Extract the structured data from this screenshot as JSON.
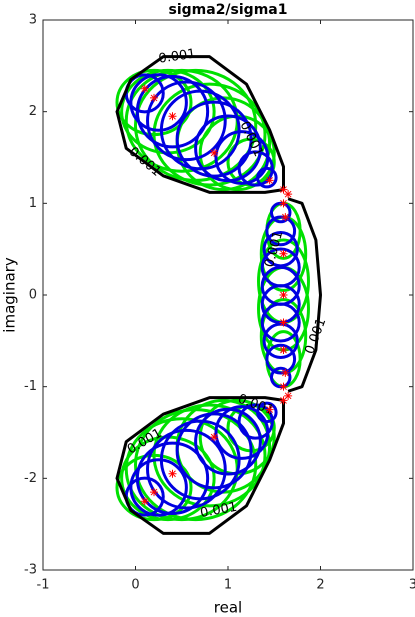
{
  "chart_data": {
    "type": "contour",
    "title": "sigma2/sigma1",
    "xlabel": "real",
    "ylabel": "imaginary",
    "xlim": [
      -1,
      3
    ],
    "ylim": [
      -3,
      3
    ],
    "xticks": [
      -1,
      0,
      1,
      2,
      3
    ],
    "yticks": [
      -3,
      -2,
      -1,
      0,
      1,
      2,
      3
    ],
    "contour": {
      "level": 0.001,
      "color": "#000000",
      "curves": [
        {
          "x": [
            1.6,
            1.4,
            0.8,
            0.3,
            -0.1,
            -0.2,
            -0.05,
            0.3,
            0.8,
            1.2,
            1.45,
            1.6,
            1.6
          ],
          "y": [
            1.15,
            1.12,
            1.12,
            1.3,
            1.6,
            2.0,
            2.35,
            2.6,
            2.6,
            2.3,
            1.8,
            1.4,
            1.15
          ]
        },
        {
          "x": [
            1.6,
            1.4,
            0.8,
            0.3,
            -0.1,
            -0.2,
            -0.05,
            0.3,
            0.8,
            1.2,
            1.45,
            1.6,
            1.6
          ],
          "y": [
            -1.15,
            -1.12,
            -1.12,
            -1.3,
            -1.6,
            -2.0,
            -2.35,
            -2.6,
            -2.6,
            -2.3,
            -1.8,
            -1.4,
            -1.15
          ]
        },
        {
          "x": [
            1.65,
            1.8,
            1.95,
            2.0,
            1.95,
            1.8,
            1.65
          ],
          "y": [
            1.05,
            1.0,
            0.6,
            0,
            -0.6,
            -1.0,
            -1.05
          ]
        }
      ],
      "labels": [
        {
          "x": 0.45,
          "y": 2.6
        },
        {
          "x": 1.25,
          "y": 1.7
        },
        {
          "x": 0.1,
          "y": 1.45
        },
        {
          "x": 1.5,
          "y": 0.5
        },
        {
          "x": 1.95,
          "y": -0.45
        },
        {
          "x": 1.3,
          "y": -1.2
        },
        {
          "x": 0.1,
          "y": -1.6
        },
        {
          "x": 0.9,
          "y": -2.35
        }
      ]
    },
    "ellipses": {
      "color": "#00e000",
      "cx": [
        0.2,
        0.35,
        0.5,
        0.65,
        0.8,
        0.95,
        1.1,
        1.25,
        0.2,
        0.35,
        0.5,
        0.65,
        0.8,
        0.95,
        1.1,
        1.25,
        1.6,
        1.6,
        1.6,
        1.6,
        1.6,
        1.6
      ],
      "cy": [
        2.1,
        2.0,
        1.9,
        1.85,
        1.75,
        1.65,
        1.55,
        1.45,
        -2.1,
        -2.0,
        -1.9,
        -1.85,
        -1.75,
        -1.65,
        -1.55,
        -1.45,
        -0.7,
        -0.45,
        -0.15,
        0.15,
        0.45,
        0.7
      ],
      "rx": [
        0.4,
        0.5,
        0.6,
        0.65,
        0.6,
        0.5,
        0.4,
        0.25,
        0.4,
        0.5,
        0.6,
        0.65,
        0.6,
        0.5,
        0.4,
        0.25,
        0.18,
        0.24,
        0.27,
        0.27,
        0.24,
        0.18
      ],
      "ry": [
        0.35,
        0.45,
        0.55,
        0.6,
        0.55,
        0.5,
        0.4,
        0.25,
        0.35,
        0.45,
        0.55,
        0.6,
        0.55,
        0.5,
        0.4,
        0.25,
        0.3,
        0.4,
        0.45,
        0.45,
        0.4,
        0.3
      ]
    },
    "circles": {
      "color": "#0000e0",
      "cx": [
        0.1,
        0.25,
        0.4,
        0.55,
        0.7,
        0.85,
        1.0,
        1.15,
        1.3,
        1.42,
        0.1,
        0.25,
        0.4,
        0.55,
        0.7,
        0.85,
        1.0,
        1.15,
        1.3,
        1.42,
        1.57,
        1.57,
        1.57,
        1.57,
        1.57,
        1.57,
        1.57,
        1.57,
        1.57,
        1.57
      ],
      "cy": [
        2.2,
        2.1,
        2.0,
        1.9,
        1.8,
        1.7,
        1.6,
        1.5,
        1.38,
        1.28,
        -2.2,
        -2.1,
        -2.0,
        -1.9,
        -1.8,
        -1.7,
        -1.6,
        -1.5,
        -1.38,
        -1.28,
        -0.9,
        -0.7,
        -0.5,
        -0.3,
        -0.1,
        0.1,
        0.3,
        0.5,
        0.7,
        0.9
      ],
      "r": [
        0.2,
        0.3,
        0.38,
        0.42,
        0.42,
        0.4,
        0.35,
        0.28,
        0.18,
        0.1,
        0.2,
        0.3,
        0.38,
        0.42,
        0.42,
        0.4,
        0.35,
        0.28,
        0.18,
        0.1,
        0.1,
        0.15,
        0.18,
        0.2,
        0.2,
        0.2,
        0.2,
        0.18,
        0.15,
        0.1
      ]
    },
    "points": {
      "color": "#ff0000",
      "x": [
        0.1,
        0.2,
        0.4,
        0.85,
        1.45,
        1.6,
        1.65,
        1.6,
        0.1,
        0.2,
        0.4,
        0.85,
        1.45,
        1.6,
        1.65,
        1.6,
        1.62,
        1.6,
        1.6,
        1.6,
        1.6,
        1.62
      ],
      "y": [
        2.25,
        2.15,
        1.95,
        1.55,
        1.25,
        1.15,
        1.1,
        1.0,
        -2.25,
        -2.15,
        -1.95,
        -1.55,
        -1.25,
        -1.15,
        -1.1,
        -1.0,
        0.85,
        0.45,
        0,
        -0.3,
        -0.6,
        -0.85
      ]
    }
  }
}
